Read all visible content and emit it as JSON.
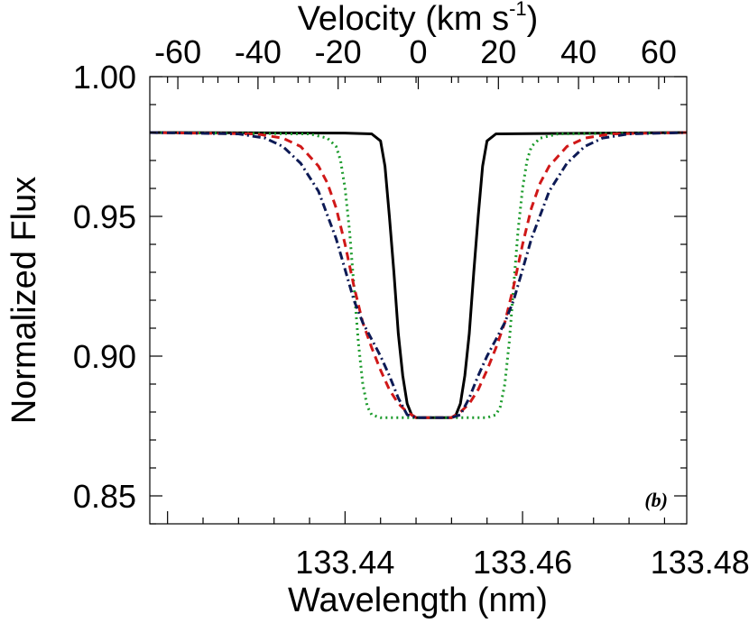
{
  "chart_data": {
    "type": "line",
    "panel_label": "(b)",
    "xlabel": "Wavelength (nm)",
    "x2label": "Velocity (km s",
    "x2label_sup": "-1",
    "x2label_end": ")",
    "ylabel": "Normalized Flux",
    "xlim": [
      133.418,
      133.4785
    ],
    "ylim": [
      0.84,
      1.0
    ],
    "x2lim": [
      -67,
      67
    ],
    "x_ticks": [
      {
        "value": 133.44,
        "label": "133.44"
      },
      {
        "value": 133.46,
        "label": "133.46"
      },
      {
        "value": 133.48,
        "label": "133.48"
      }
    ],
    "x2_ticks": [
      {
        "value": -60,
        "label": "-60"
      },
      {
        "value": -40,
        "label": "-40"
      },
      {
        "value": -20,
        "label": "-20"
      },
      {
        "value": 0,
        "label": "0"
      },
      {
        "value": 20,
        "label": "20"
      },
      {
        "value": 40,
        "label": "40"
      },
      {
        "value": 60,
        "label": "60"
      }
    ],
    "y_ticks": [
      {
        "value": 1.0,
        "label": "1.00"
      },
      {
        "value": 0.95,
        "label": "0.95"
      },
      {
        "value": 0.9,
        "label": "0.90"
      },
      {
        "value": 0.85,
        "label": "0.85"
      }
    ],
    "grid": false,
    "legend": "none",
    "series": [
      {
        "color": "#000000",
        "style": "solid",
        "x": [
          133.418,
          133.44,
          133.443,
          133.444,
          133.4445,
          133.445,
          133.4455,
          133.446,
          133.4465,
          133.447,
          133.4475,
          133.448,
          133.449,
          133.451,
          133.452,
          133.4525,
          133.453,
          133.4535,
          133.454,
          133.4545,
          133.455,
          133.4555,
          133.456,
          133.457,
          133.4785
        ],
        "y": [
          0.98,
          0.9798,
          0.9795,
          0.977,
          0.968,
          0.95,
          0.93,
          0.908,
          0.893,
          0.883,
          0.879,
          0.878,
          0.878,
          0.878,
          0.878,
          0.879,
          0.883,
          0.893,
          0.908,
          0.93,
          0.95,
          0.968,
          0.977,
          0.9795,
          0.98
        ]
      },
      {
        "color": "#1a9a2a",
        "style": "dotted",
        "x": [
          133.418,
          133.436,
          133.438,
          133.439,
          133.4395,
          133.44,
          133.4405,
          133.441,
          133.4415,
          133.442,
          133.4425,
          133.443,
          133.444,
          133.446,
          133.454,
          133.456,
          133.457,
          133.4575,
          133.458,
          133.4585,
          133.459,
          133.4595,
          133.46,
          133.4605,
          133.461,
          133.462,
          133.464,
          133.4785
        ],
        "y": [
          0.98,
          0.9795,
          0.978,
          0.975,
          0.97,
          0.96,
          0.945,
          0.925,
          0.905,
          0.89,
          0.882,
          0.879,
          0.878,
          0.878,
          0.878,
          0.878,
          0.879,
          0.882,
          0.89,
          0.905,
          0.925,
          0.945,
          0.96,
          0.97,
          0.975,
          0.978,
          0.9795,
          0.98
        ]
      },
      {
        "color": "#d01818",
        "style": "dashed",
        "x": [
          133.418,
          133.43,
          133.433,
          133.435,
          133.437,
          133.438,
          133.439,
          133.44,
          133.441,
          133.442,
          133.443,
          133.444,
          133.445,
          133.446,
          133.447,
          133.448,
          133.452,
          133.453,
          133.454,
          133.455,
          133.456,
          133.457,
          133.458,
          133.459,
          133.46,
          133.461,
          133.462,
          133.463,
          133.465,
          133.467,
          133.47,
          133.4785
        ],
        "y": [
          0.98,
          0.9795,
          0.978,
          0.975,
          0.968,
          0.962,
          0.953,
          0.94,
          0.925,
          0.912,
          0.903,
          0.895,
          0.888,
          0.883,
          0.88,
          0.878,
          0.878,
          0.88,
          0.883,
          0.888,
          0.895,
          0.903,
          0.912,
          0.925,
          0.94,
          0.953,
          0.962,
          0.968,
          0.975,
          0.978,
          0.9795,
          0.98
        ]
      },
      {
        "color": "#0d1a55",
        "style": "dashdot",
        "x": [
          133.418,
          133.428,
          133.431,
          133.433,
          133.435,
          133.437,
          133.439,
          133.44,
          133.441,
          133.442,
          133.443,
          133.444,
          133.445,
          133.446,
          133.447,
          133.448,
          133.452,
          133.453,
          133.454,
          133.455,
          133.456,
          133.457,
          133.458,
          133.459,
          133.46,
          133.461,
          133.463,
          133.465,
          133.467,
          133.469,
          133.472,
          133.4785
        ],
        "y": [
          0.98,
          0.9795,
          0.978,
          0.975,
          0.969,
          0.959,
          0.942,
          0.931,
          0.92,
          0.912,
          0.906,
          0.9,
          0.893,
          0.885,
          0.879,
          0.878,
          0.878,
          0.879,
          0.885,
          0.893,
          0.9,
          0.906,
          0.912,
          0.92,
          0.931,
          0.942,
          0.959,
          0.969,
          0.975,
          0.978,
          0.9795,
          0.98
        ]
      }
    ]
  }
}
